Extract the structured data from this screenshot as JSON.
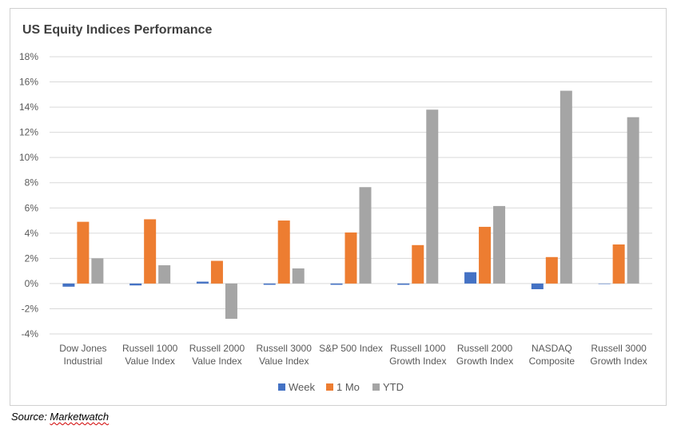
{
  "chart_data": {
    "type": "bar",
    "title": "US Equity Indices Performance",
    "categories": [
      [
        "Dow Jones",
        "Industrial"
      ],
      [
        "Russell 1000",
        "Value Index"
      ],
      [
        "Russell 2000",
        "Value Index"
      ],
      [
        "Russell 3000",
        "Value Index"
      ],
      [
        "S&P 500 Index"
      ],
      [
        "Russell 1000",
        "Growth Index"
      ],
      [
        "Russell 2000",
        "Growth Index"
      ],
      [
        "NASDAQ",
        "Composite"
      ],
      [
        "Russell 3000",
        "Growth Index"
      ]
    ],
    "series": [
      {
        "name": "Week",
        "color": "#4472c4",
        "values": [
          -0.25,
          -0.15,
          0.15,
          -0.1,
          -0.1,
          -0.1,
          0.9,
          -0.45,
          0.0
        ]
      },
      {
        "name": "1 Mo",
        "color": "#ed7d31",
        "values": [
          4.9,
          5.1,
          1.8,
          5.0,
          4.05,
          3.05,
          4.5,
          2.1,
          3.1
        ]
      },
      {
        "name": "YTD",
        "color": "#a5a5a5",
        "values": [
          2.0,
          1.45,
          -2.8,
          1.2,
          7.65,
          13.8,
          6.15,
          15.3,
          13.2
        ]
      }
    ],
    "y_ticks": [
      "18%",
      "16%",
      "14%",
      "12%",
      "10%",
      "8%",
      "6%",
      "4%",
      "2%",
      "0%",
      "-2%",
      "-4%"
    ],
    "ylim": [
      -4,
      18
    ],
    "grid": true,
    "legend_position": "bottom"
  },
  "footer": {
    "source_prefix": "Source: ",
    "source_brand": "Marketwatch"
  }
}
